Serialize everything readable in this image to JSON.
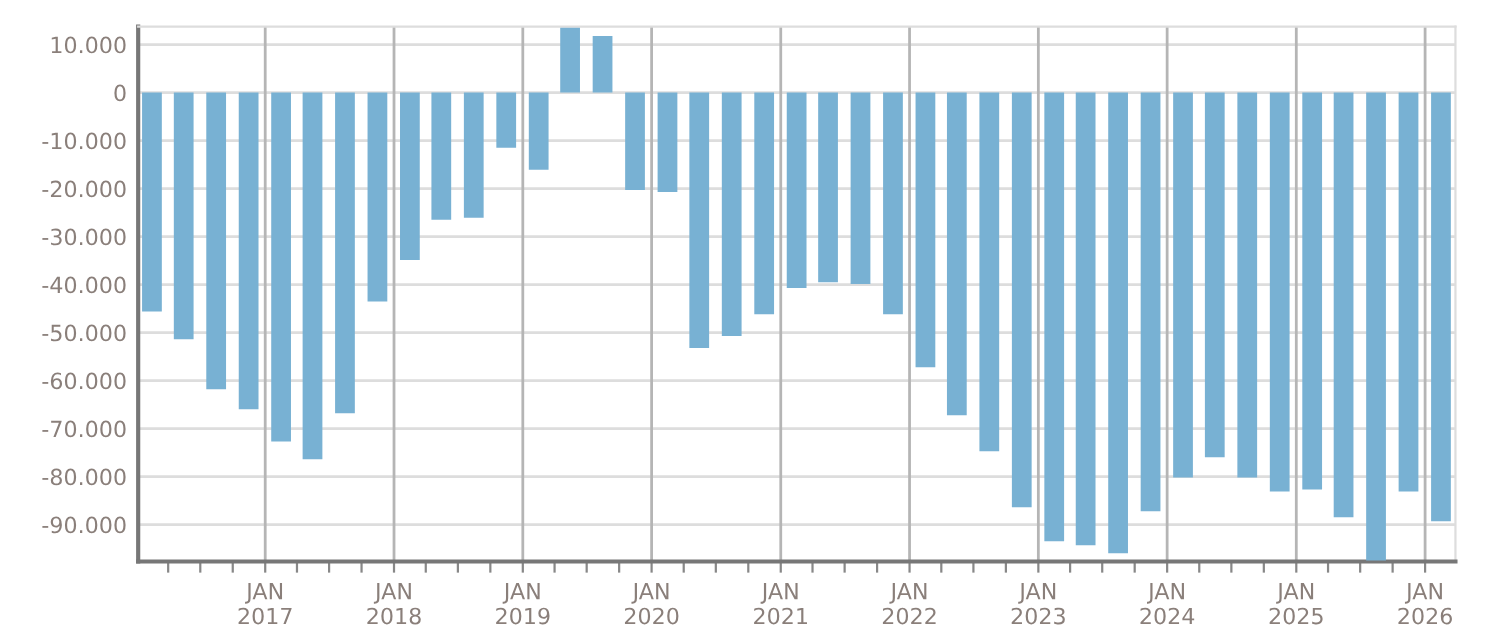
{
  "chart_data": {
    "type": "bar",
    "color": "#78b1d3",
    "x": [
      "2016-02-15",
      "2016-05-15",
      "2016-08-15",
      "2016-11-15",
      "2017-02-15",
      "2017-05-15",
      "2017-08-15",
      "2017-11-15",
      "2018-02-15",
      "2018-05-15",
      "2018-08-15",
      "2018-11-15",
      "2019-02-15",
      "2019-05-15",
      "2019-08-15",
      "2019-11-15",
      "2020-02-15",
      "2020-05-15",
      "2020-08-15",
      "2020-11-15",
      "2021-02-15",
      "2021-05-15",
      "2021-08-15",
      "2021-11-15",
      "2022-02-15",
      "2022-05-15",
      "2022-08-15",
      "2022-11-15",
      "2023-02-15",
      "2023-05-15",
      "2023-08-15",
      "2023-11-15",
      "2024-02-15",
      "2024-05-15",
      "2024-08-15",
      "2024-11-15",
      "2025-02-15",
      "2025-05-15",
      "2025-08-15",
      "2025-11-15",
      "2026-02-15"
    ],
    "values": [
      -45600,
      -51400,
      -61800,
      -66000,
      -72700,
      -76400,
      -66800,
      -43500,
      -34900,
      -26500,
      -26100,
      -11500,
      -16100,
      13500,
      11800,
      -20300,
      -20700,
      -53200,
      -50700,
      -46200,
      -40700,
      -39500,
      -39900,
      -46200,
      -57200,
      -67200,
      -74700,
      -86400,
      -93500,
      -94300,
      -96000,
      -87200,
      -80200,
      -76000,
      -80200,
      -83100,
      -82700,
      -88500,
      -97500,
      -83100,
      -89300
    ],
    "xlim": [
      "2016-01-07",
      "2026-03-28"
    ],
    "xticks": [
      {
        "value": "2016-04-01",
        "label": null
      },
      {
        "value": "2016-07-01",
        "label": null
      },
      {
        "value": "2016-10-01",
        "label": null
      },
      {
        "value": "2017-01-01",
        "label": "JAN\n2017"
      },
      {
        "value": "2017-04-01",
        "label": null
      },
      {
        "value": "2017-07-01",
        "label": null
      },
      {
        "value": "2017-10-01",
        "label": null
      },
      {
        "value": "2018-01-01",
        "label": "JAN\n2018"
      },
      {
        "value": "2018-04-01",
        "label": null
      },
      {
        "value": "2018-07-01",
        "label": null
      },
      {
        "value": "2018-10-01",
        "label": null
      },
      {
        "value": "2019-01-01",
        "label": "JAN\n2019"
      },
      {
        "value": "2019-04-01",
        "label": null
      },
      {
        "value": "2019-07-01",
        "label": null
      },
      {
        "value": "2019-10-01",
        "label": null
      },
      {
        "value": "2020-01-01",
        "label": "JAN\n2020"
      },
      {
        "value": "2020-04-01",
        "label": null
      },
      {
        "value": "2020-07-01",
        "label": null
      },
      {
        "value": "2020-10-01",
        "label": null
      },
      {
        "value": "2021-01-01",
        "label": "JAN\n2021"
      },
      {
        "value": "2021-04-01",
        "label": null
      },
      {
        "value": "2021-07-01",
        "label": null
      },
      {
        "value": "2021-10-01",
        "label": null
      },
      {
        "value": "2022-01-01",
        "label": "JAN\n2022"
      },
      {
        "value": "2022-04-01",
        "label": null
      },
      {
        "value": "2022-07-01",
        "label": null
      },
      {
        "value": "2022-10-01",
        "label": null
      },
      {
        "value": "2023-01-01",
        "label": "JAN\n2023"
      },
      {
        "value": "2023-04-01",
        "label": null
      },
      {
        "value": "2023-07-01",
        "label": null
      },
      {
        "value": "2023-10-01",
        "label": null
      },
      {
        "value": "2024-01-01",
        "label": "JAN\n2024"
      },
      {
        "value": "2024-04-01",
        "label": null
      },
      {
        "value": "2024-07-01",
        "label": null
      },
      {
        "value": "2024-10-01",
        "label": null
      },
      {
        "value": "2025-01-01",
        "label": "JAN\n2025"
      },
      {
        "value": "2025-04-01",
        "label": null
      },
      {
        "value": "2025-07-01",
        "label": null
      },
      {
        "value": "2025-10-01",
        "label": null
      },
      {
        "value": "2026-01-01",
        "label": "JAN\n2026"
      }
    ],
    "ylim": [
      -97700,
      13750
    ],
    "yticks": [
      {
        "value": 10000,
        "label": "10.000"
      },
      0,
      {
        "value": -10000,
        "label": "-10.000"
      },
      {
        "value": -20000,
        "label": "-20.000"
      },
      {
        "value": -30000,
        "label": "-30.000"
      },
      {
        "value": -40000,
        "label": "-40.000"
      },
      {
        "value": -50000,
        "label": "-50.000"
      },
      {
        "value": -60000,
        "label": "-60.000"
      },
      {
        "value": -70000,
        "label": "-70.000"
      },
      {
        "value": -80000,
        "label": "-80.000"
      },
      {
        "value": -90000,
        "label": "-90.000"
      }
    ],
    "grid": true
  }
}
